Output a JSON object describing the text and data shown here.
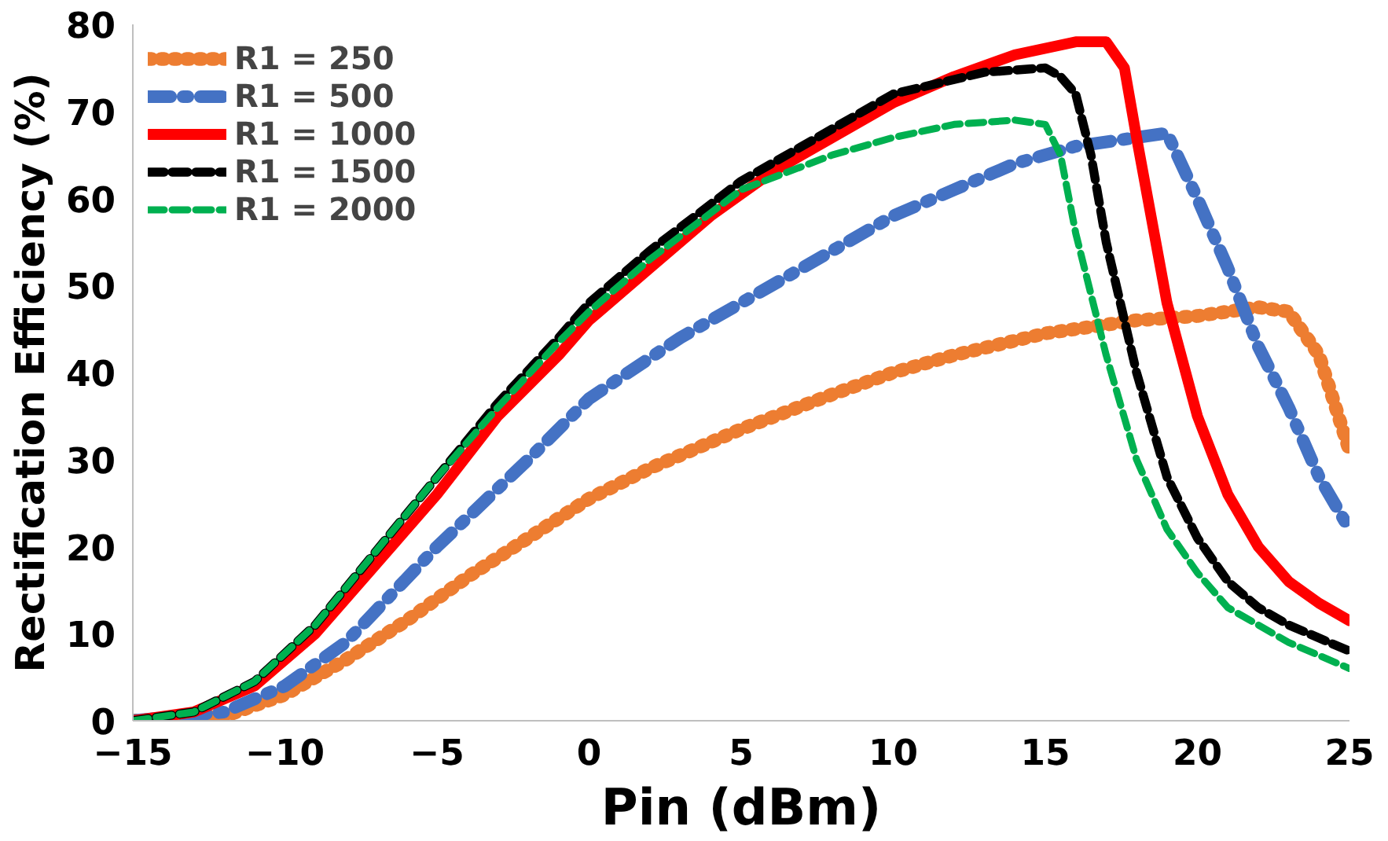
{
  "chart_data": {
    "type": "line",
    "xlabel": "Pin (dBm)",
    "ylabel": "Rectification Efficiency (%)",
    "xlim": [
      -15,
      25
    ],
    "ylim": [
      0,
      80
    ],
    "xticks": [
      -15,
      -10,
      -5,
      0,
      5,
      10,
      15,
      20,
      25
    ],
    "yticks": [
      0,
      10,
      20,
      30,
      40,
      50,
      60,
      70,
      80
    ],
    "grid": false,
    "legend": "top left",
    "series": [
      {
        "name": "R1 = 250",
        "color": "#ed7d31",
        "line_style": "dotted",
        "x": [
          -15,
          -12,
          -10,
          -8,
          -6,
          -4,
          -2,
          0,
          2,
          5,
          8,
          10,
          12,
          15,
          18,
          20,
          22,
          23,
          24,
          25
        ],
        "values": [
          0,
          0.5,
          3,
          7,
          11.5,
          16.5,
          21,
          25.5,
          29,
          33.5,
          37.5,
          40,
          42,
          44.5,
          46,
          46.5,
          47.5,
          47,
          42,
          31
        ]
      },
      {
        "name": "R1 = 500",
        "color": "#4472c4",
        "line_style": "dashdot",
        "x": [
          -15,
          -12,
          -10,
          -8,
          -5,
          -2,
          0,
          3,
          5,
          8,
          10,
          12,
          14,
          16,
          18,
          19,
          20,
          21,
          22,
          23,
          24,
          25
        ],
        "values": [
          0,
          1,
          4,
          9,
          20,
          30,
          37,
          44,
          48,
          54,
          58,
          61,
          64,
          66,
          67,
          67.5,
          60,
          52,
          43,
          36,
          28,
          22
        ]
      },
      {
        "name": "R1 = 1000",
        "color": "#ff0000",
        "line_style": "solid",
        "x": [
          -15,
          -13,
          -11,
          -9,
          -7,
          -5,
          -3,
          -1,
          0,
          2,
          4,
          6,
          8,
          10,
          12,
          14,
          16,
          17,
          17.6,
          18,
          19,
          20,
          21,
          22,
          23,
          24,
          25
        ],
        "values": [
          0,
          1,
          4,
          10,
          18,
          26,
          35,
          42,
          46,
          52,
          58,
          63,
          67,
          71,
          74,
          76.5,
          78,
          78,
          75,
          67,
          48,
          35,
          26,
          20,
          16,
          13.5,
          11.5
        ]
      },
      {
        "name": "R1 = 1500",
        "color": "#000000",
        "line_style": "dashed",
        "x": [
          -15,
          -13,
          -11,
          -9,
          -7,
          -5,
          -3,
          -1,
          0,
          2,
          5,
          8,
          10,
          13,
          15,
          15.5,
          16,
          16.5,
          17,
          18,
          19,
          20,
          21,
          22,
          23,
          24,
          25
        ],
        "values": [
          0,
          1,
          4.5,
          11,
          19.5,
          28,
          36.5,
          44,
          48,
          54,
          62,
          68,
          72,
          74.5,
          75,
          74,
          72,
          65,
          55,
          40,
          28,
          21,
          16,
          13,
          11,
          9.5,
          8
        ]
      },
      {
        "name": "R1 = 2000",
        "color": "#00b050",
        "line_style": "dashed",
        "x": [
          -15,
          -13,
          -11,
          -9,
          -7,
          -5,
          -3,
          -1,
          0,
          2,
          5,
          8,
          10,
          12,
          14,
          15,
          15.5,
          16,
          17,
          18,
          19,
          20,
          21,
          22,
          23,
          24,
          25
        ],
        "values": [
          0,
          1,
          4.5,
          11,
          19.5,
          28,
          36,
          43.5,
          47,
          53,
          61,
          65,
          67,
          68.5,
          69,
          68.5,
          65,
          56,
          42,
          30,
          22,
          17,
          13,
          11,
          9,
          7.5,
          6
        ]
      }
    ]
  }
}
